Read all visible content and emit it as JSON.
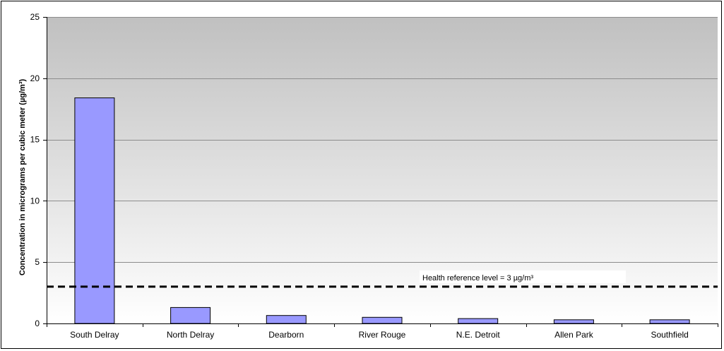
{
  "chart_data": {
    "type": "bar",
    "categories": [
      "South Delray",
      "North Delray",
      "Dearborn",
      "River Rouge",
      "N.E. Detroit",
      "Allen Park",
      "Southfield"
    ],
    "values": [
      18.4,
      1.3,
      0.65,
      0.5,
      0.4,
      0.3,
      0.3
    ],
    "title": "",
    "xlabel": "",
    "ylabel": "Concentration in micrograms per cubic meter (µg/m³)",
    "ylim": [
      0,
      25
    ],
    "yticks": [
      0,
      5,
      10,
      15,
      20,
      25
    ],
    "grid": true,
    "legend": "none",
    "reference_line": {
      "value": 3,
      "label": "Health reference level = 3 µg/m³",
      "style": "dashed"
    },
    "colors": {
      "bar_fill": "#9999ff",
      "bar_stroke": "#000000",
      "plot_bg_top": "#c0c0c0",
      "plot_bg_bottom": "#ffffff",
      "gridline": "#8c8c8c",
      "reference_line": "#000000"
    }
  }
}
